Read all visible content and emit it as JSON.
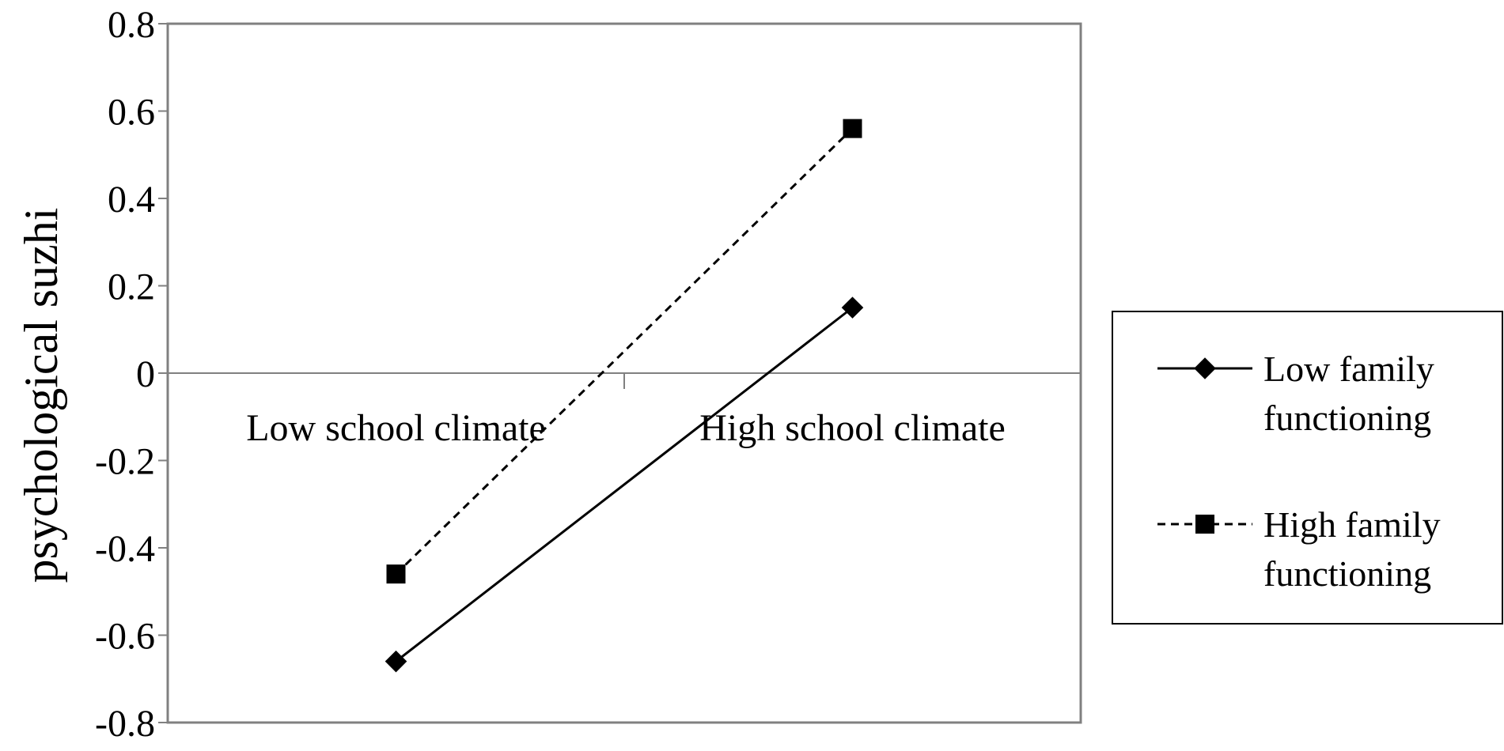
{
  "chart_data": {
    "type": "line",
    "title": "",
    "xlabel": "",
    "ylabel": "psychological suzhi",
    "categories": [
      "Low school climate",
      "High school climate"
    ],
    "ylim": [
      -0.8,
      0.8
    ],
    "yticks": [
      0.8,
      0.6,
      0.4,
      0.2,
      0,
      -0.2,
      -0.4,
      -0.6,
      -0.8
    ],
    "ytick_labels": [
      "0.8",
      "0.6",
      "0.4",
      "0.2",
      "0",
      "-0.2",
      "-0.4",
      "-0.6",
      "-0.8"
    ],
    "grid": false,
    "legend_position": "right",
    "series": [
      {
        "name_lines": [
          "Low family",
          "functioning"
        ],
        "values": [
          -0.66,
          0.15
        ],
        "line_style": "solid",
        "marker": "diamond",
        "color": "#000000"
      },
      {
        "name_lines": [
          "High family",
          "functioning"
        ],
        "values": [
          -0.46,
          0.56
        ],
        "line_style": "dashed",
        "marker": "square",
        "color": "#000000"
      }
    ],
    "colors": {
      "frame": "#808080",
      "axis": "#808080",
      "series": "#000000"
    }
  }
}
